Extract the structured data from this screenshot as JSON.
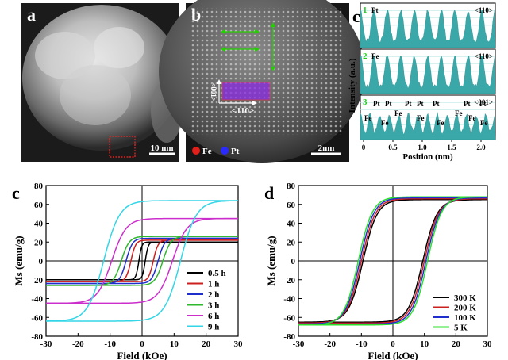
{
  "panels": {
    "a": {
      "label": "a",
      "scalebar": "10 nm"
    },
    "b": {
      "label": "b",
      "scalebar": "2nm",
      "dir1": "<001>",
      "dir2": "<110>",
      "legend": [
        "Fe",
        "Pt"
      ],
      "colors": {
        "fe": "#e0201a",
        "pt": "#2a2aff",
        "overlay": "#8a2be2",
        "arrow": "#22d000"
      }
    },
    "c_profile": {
      "label": "c",
      "xlabel": "Position (nm)",
      "ylabel": "Intensity (a.u.)",
      "xticks": [
        "0",
        "0.5",
        "1.0",
        "1.5",
        "2.0"
      ],
      "fill": "#3aa8a8",
      "rows": [
        {
          "num": "1",
          "tag": "<110>",
          "atoms": [
            "Pt"
          ]
        },
        {
          "num": "2",
          "tag": "<110>",
          "atoms": [
            "Fe"
          ]
        },
        {
          "num": "3",
          "tag": "<001>",
          "atoms": [
            "Pt",
            "Pt",
            "Pt",
            "Pt",
            "Pt",
            "Pt",
            "Pt",
            "Fe",
            "Fe",
            "Fe",
            "Fe",
            "Fe",
            "Fe",
            "Fe",
            "Fe"
          ]
        }
      ]
    }
  },
  "chart_data": [
    {
      "type": "line",
      "panel_label": "c",
      "xlabel": "Field (kOe)",
      "ylabel": "Ms (emu/g)",
      "xlim": [
        -30,
        30
      ],
      "ylim": [
        -80,
        80
      ],
      "xticks": [
        -30,
        -20,
        -10,
        0,
        10,
        20,
        30
      ],
      "yticks": [
        -80,
        -60,
        -40,
        -20,
        0,
        20,
        40,
        60,
        80
      ],
      "legend_position": "bottom-right",
      "series": [
        {
          "name": "0.5 h",
          "color": "#000000",
          "ms": 20,
          "hc": 1.0,
          "w": 0.9
        },
        {
          "name": "1 h",
          "color": "#cc1f1f",
          "ms": 22,
          "hc": 3.5,
          "w": 1.5
        },
        {
          "name": "2 h",
          "color": "#1f2fcc",
          "ms": 24,
          "hc": 5.0,
          "w": 2.0
        },
        {
          "name": "3 h",
          "color": "#2eb82e",
          "ms": 26,
          "hc": 6.5,
          "w": 2.5
        },
        {
          "name": "6 h",
          "color": "#cc2ecc",
          "ms": 45,
          "hc": 9.5,
          "w": 4.5
        },
        {
          "name": "9 h",
          "color": "#33d6e6",
          "ms": 64,
          "hc": 12.0,
          "w": 5.0
        }
      ]
    },
    {
      "type": "line",
      "panel_label": "d",
      "xlabel": "Field (kOe)",
      "ylabel": "Ms (emu/g)",
      "xlim": [
        -30,
        30
      ],
      "ylim": [
        -80,
        80
      ],
      "xticks": [
        -30,
        -20,
        -10,
        0,
        10,
        20,
        30
      ],
      "yticks": [
        -80,
        -60,
        -40,
        -20,
        0,
        20,
        40,
        60,
        80
      ],
      "legend_position": "bottom-right",
      "series": [
        {
          "name": "300 K",
          "color": "#000000",
          "ms": 65,
          "hc": 9.5
        },
        {
          "name": "200 K",
          "color": "#cc1f1f",
          "ms": 66,
          "hc": 10.0
        },
        {
          "name": "100 K",
          "color": "#1f2fcc",
          "ms": 67,
          "hc": 10.5
        },
        {
          "name": "5 K",
          "color": "#2ee02e",
          "ms": 68,
          "hc": 11.0
        }
      ]
    }
  ]
}
